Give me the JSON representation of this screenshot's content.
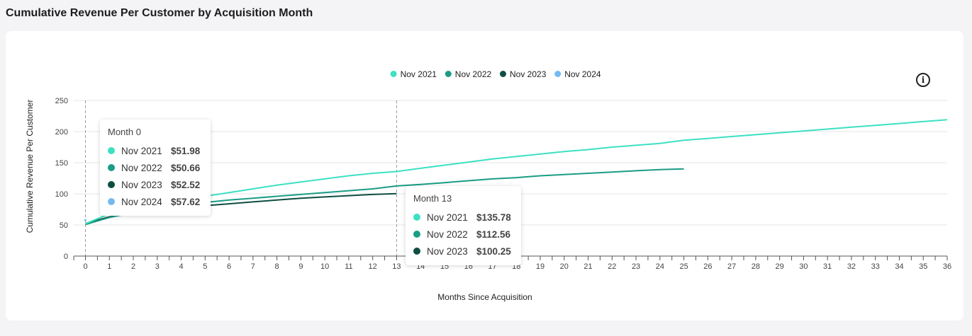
{
  "page": {
    "title": "Cumulative Revenue Per Customer by Acquisition Month"
  },
  "chart_data": {
    "type": "line",
    "title": "",
    "xlabel": "Months Since Acquisition",
    "ylabel": "Cumulative Revenue Per Customer",
    "xlim": [
      0,
      36
    ],
    "ylim": [
      0,
      250
    ],
    "x_ticks": [
      0,
      1,
      2,
      3,
      4,
      5,
      6,
      7,
      8,
      9,
      10,
      11,
      12,
      13,
      14,
      15,
      16,
      17,
      18,
      19,
      20,
      21,
      22,
      23,
      24,
      25,
      26,
      27,
      28,
      29,
      30,
      31,
      32,
      33,
      34,
      35,
      36
    ],
    "y_ticks": [
      0,
      50,
      100,
      150,
      200,
      250
    ],
    "grid": "horizontal",
    "legend_position": "top-center",
    "series": [
      {
        "name": "Nov 2021",
        "color": "#3de0c2",
        "x": [
          0,
          1,
          2,
          3,
          4,
          5,
          6,
          7,
          8,
          9,
          10,
          11,
          12,
          13,
          14,
          15,
          16,
          17,
          18,
          19,
          20,
          21,
          22,
          23,
          24,
          25,
          26,
          27,
          28,
          29,
          30,
          31,
          32,
          33,
          34,
          35,
          36
        ],
        "values": [
          51.98,
          68,
          74,
          82,
          89,
          96,
          102,
          108,
          114,
          119,
          124,
          129,
          133,
          135.78,
          141,
          146,
          151,
          156,
          160,
          164,
          168,
          171,
          175,
          178,
          181,
          186,
          189,
          192,
          195,
          198,
          201,
          204,
          207,
          210,
          213,
          216,
          219
        ]
      },
      {
        "name": "Nov 2022",
        "color": "#1a9c86",
        "x": [
          0,
          1,
          2,
          3,
          4,
          5,
          6,
          7,
          8,
          9,
          10,
          11,
          12,
          13,
          14,
          15,
          16,
          17,
          18,
          19,
          20,
          21,
          22,
          23,
          24,
          25
        ],
        "values": [
          50.66,
          62,
          70,
          76,
          81,
          86,
          90,
          93,
          96,
          99,
          102,
          105,
          108,
          112.56,
          115,
          118,
          121,
          124,
          126,
          129,
          131,
          133,
          135,
          137,
          139,
          140
        ]
      },
      {
        "name": "Nov 2023",
        "color": "#0e4d42",
        "x": [
          0,
          1,
          2,
          3,
          4,
          5,
          6,
          7,
          8,
          9,
          10,
          11,
          12,
          13
        ],
        "values": [
          52.52,
          63,
          69,
          74,
          78,
          81,
          84,
          87,
          90,
          93,
          95,
          97,
          99,
          100.25
        ]
      },
      {
        "name": "Nov 2024",
        "color": "#74baf0",
        "x": [
          0
        ],
        "values": [
          57.62
        ]
      }
    ],
    "tooltips": [
      {
        "title": "Month 0",
        "rows": [
          {
            "name": "Nov 2021",
            "value": "$51.98",
            "color": "#3de0c2"
          },
          {
            "name": "Nov 2022",
            "value": "$50.66",
            "color": "#1a9c86"
          },
          {
            "name": "Nov 2023",
            "value": "$52.52",
            "color": "#0e4d42"
          },
          {
            "name": "Nov 2024",
            "value": "$57.62",
            "color": "#74baf0"
          }
        ]
      },
      {
        "title": "Month 13",
        "rows": [
          {
            "name": "Nov 2021",
            "value": "$135.78",
            "color": "#3de0c2"
          },
          {
            "name": "Nov 2022",
            "value": "$112.56",
            "color": "#1a9c86"
          },
          {
            "name": "Nov 2023",
            "value": "$100.25",
            "color": "#0e4d42"
          }
        ]
      }
    ],
    "crosshairs_at_x": [
      0,
      13
    ]
  }
}
